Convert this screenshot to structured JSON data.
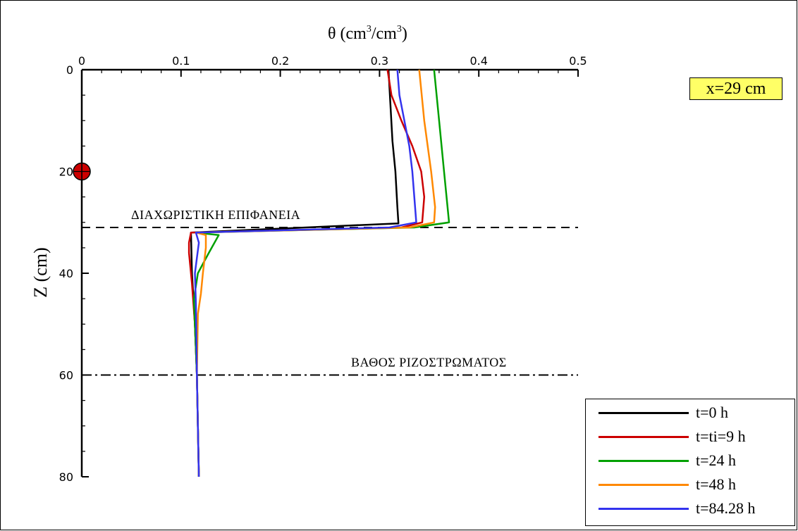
{
  "chart_data": {
    "type": "line",
    "x_axis_label": "θ (cm³/cm³)",
    "y_axis_label": "Z (cm)",
    "x_ticks": [
      "0",
      "0.1",
      "0.2",
      "0.3",
      "0.4",
      "0.5"
    ],
    "y_ticks": [
      "0",
      "20",
      "40",
      "60",
      "80"
    ],
    "xlim": [
      0,
      0.5
    ],
    "ylim": [
      0,
      80
    ],
    "y_inverted": true,
    "annotation_box": "x=29 cm",
    "horizontal_lines": [
      {
        "label": "ΔΙΑΧΩΡΙΣΤΙΚΗ  ΕΠΙΦΑΝΕΙΑ",
        "z": 31,
        "style": "dashed"
      },
      {
        "label": "ΒΑΘΟΣ  ΡΙΖΟΣΤΡΩΜΑΤΟΣ",
        "z": 60,
        "style": "dashdot"
      }
    ],
    "marker": {
      "x": 0,
      "z": 20,
      "color": "#cc0000"
    },
    "series": [
      {
        "name": "t=0 h",
        "color": "#000000",
        "points": [
          [
            0.309,
            0
          ],
          [
            0.311,
            7
          ],
          [
            0.313,
            14
          ],
          [
            0.316,
            20
          ],
          [
            0.318,
            27
          ],
          [
            0.319,
            30.2
          ],
          [
            0.11,
            32
          ],
          [
            0.111,
            40
          ],
          [
            0.114,
            50
          ],
          [
            0.116,
            60
          ],
          [
            0.117,
            70
          ],
          [
            0.118,
            80
          ]
        ]
      },
      {
        "name": "t=ti=9 h",
        "color": "#cc0000",
        "points": [
          [
            0.308,
            0
          ],
          [
            0.312,
            5
          ],
          [
            0.322,
            10
          ],
          [
            0.333,
            15
          ],
          [
            0.342,
            20
          ],
          [
            0.345,
            25
          ],
          [
            0.343,
            30
          ],
          [
            0.322,
            31
          ],
          [
            0.11,
            32
          ],
          [
            0.108,
            34
          ],
          [
            0.108,
            36
          ],
          [
            0.111,
            42
          ],
          [
            0.114,
            50
          ],
          [
            0.116,
            60
          ],
          [
            0.117,
            70
          ],
          [
            0.118,
            80
          ]
        ]
      },
      {
        "name": "t=24 h",
        "color": "#00a000",
        "points": [
          [
            0.355,
            0
          ],
          [
            0.36,
            10
          ],
          [
            0.365,
            20
          ],
          [
            0.37,
            30
          ],
          [
            0.335,
            31
          ],
          [
            0.115,
            32
          ],
          [
            0.138,
            32.5
          ],
          [
            0.128,
            36
          ],
          [
            0.117,
            40
          ],
          [
            0.113,
            45
          ],
          [
            0.114,
            50
          ],
          [
            0.116,
            60
          ],
          [
            0.117,
            70
          ],
          [
            0.118,
            80
          ]
        ]
      },
      {
        "name": "t=48 h",
        "color": "#ff8800",
        "points": [
          [
            0.34,
            0
          ],
          [
            0.345,
            10
          ],
          [
            0.352,
            20
          ],
          [
            0.356,
            27
          ],
          [
            0.355,
            30
          ],
          [
            0.33,
            31
          ],
          [
            0.115,
            32
          ],
          [
            0.125,
            32.5
          ],
          [
            0.125,
            35
          ],
          [
            0.122,
            40
          ],
          [
            0.12,
            44
          ],
          [
            0.117,
            48
          ],
          [
            0.116,
            60
          ],
          [
            0.117,
            70
          ],
          [
            0.118,
            80
          ]
        ]
      },
      {
        "name": "t=84.28 h",
        "color": "#3333ee",
        "points": [
          [
            0.318,
            0
          ],
          [
            0.32,
            5
          ],
          [
            0.325,
            10
          ],
          [
            0.33,
            15
          ],
          [
            0.333,
            20
          ],
          [
            0.335,
            25
          ],
          [
            0.337,
            30
          ],
          [
            0.31,
            31
          ],
          [
            0.115,
            32
          ],
          [
            0.118,
            34
          ],
          [
            0.116,
            37
          ],
          [
            0.114,
            40
          ],
          [
            0.115,
            46
          ],
          [
            0.116,
            60
          ],
          [
            0.117,
            70
          ],
          [
            0.118,
            80
          ]
        ]
      }
    ]
  },
  "legend": {
    "items": [
      {
        "label": "t=0 h",
        "color": "#000000"
      },
      {
        "label": "t=ti=9 h",
        "color": "#cc0000"
      },
      {
        "label": "t=24 h",
        "color": "#00a000"
      },
      {
        "label": "t=48 h",
        "color": "#ff8800"
      },
      {
        "label": "t=84.28 h",
        "color": "#3333ee"
      }
    ]
  }
}
